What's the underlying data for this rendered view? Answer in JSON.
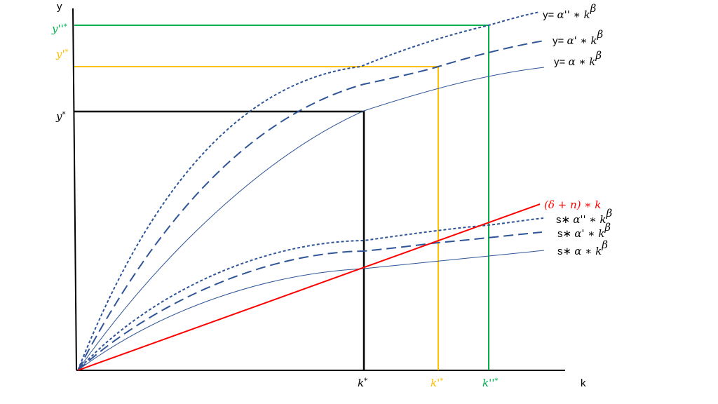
{
  "axes": {
    "y_label": "y",
    "x_label": "k"
  },
  "y_ticks": [
    {
      "id": "y-star",
      "label": "y*",
      "color": "#000000"
    },
    {
      "id": "y-prime-star",
      "label": "y'*",
      "color": "#ffc000"
    },
    {
      "id": "y-dprime-star",
      "label": "y''*",
      "color": "#00b050"
    }
  ],
  "x_ticks": [
    {
      "id": "k-star",
      "label": "k*",
      "color": "#000000"
    },
    {
      "id": "k-prime-star",
      "label": "k'*",
      "color": "#ffc000"
    },
    {
      "id": "k-dprime-star",
      "label": "k''*",
      "color": "#00b050"
    }
  ],
  "curve_labels": {
    "y_alpha_dprime": "y= α'' ∗ k^β",
    "y_alpha_prime": "y= α' ∗ k^β",
    "y_alpha": "y= α ∗ k^β",
    "depreciation": "(δ + n) ∗ k",
    "s_alpha_dprime": "s∗ α'' ∗ k^β",
    "s_alpha_prime": "s∗ α' ∗ k^β",
    "s_alpha": "s∗ α ∗ k^β"
  },
  "colors": {
    "curves": "#2f5597",
    "depreciation_line": "#ff0000",
    "k_star_lines": "#000000",
    "k_prime_lines": "#ffc000",
    "k_dprime_lines": "#00b050"
  },
  "curve_styles": {
    "alpha": "thin solid",
    "alpha_prime": "long dash",
    "alpha_dprime": "short dash"
  }
}
